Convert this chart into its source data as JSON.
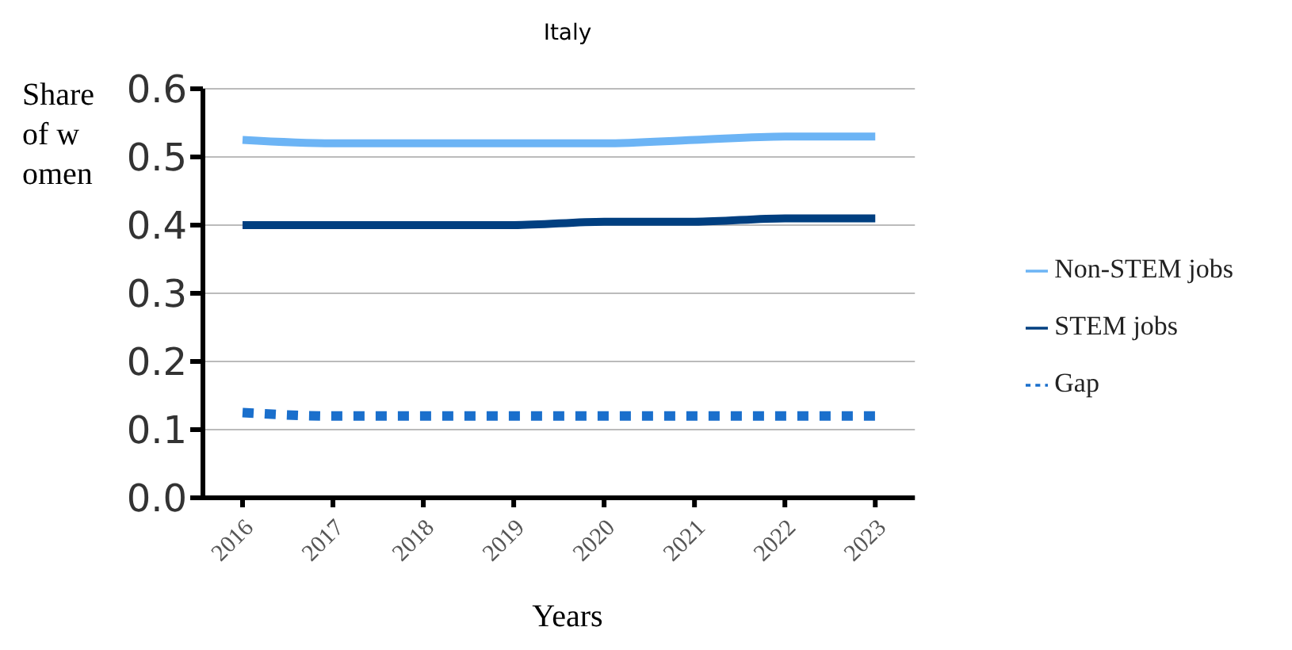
{
  "chart_data": {
    "type": "line",
    "title": "Italy",
    "xlabel": "Years",
    "ylabel": "Share of women",
    "categories": [
      "2016",
      "2017",
      "2018",
      "2019",
      "2020",
      "2021",
      "2022",
      "2023"
    ],
    "series": [
      {
        "name": "Non-STEM jobs",
        "color": "#6cb4f5",
        "values": [
          0.525,
          0.52,
          0.52,
          0.52,
          0.52,
          0.525,
          0.53,
          0.53
        ]
      },
      {
        "name": "STEM jobs",
        "color": "#003f80",
        "values": [
          0.4,
          0.4,
          0.4,
          0.4,
          0.405,
          0.405,
          0.41,
          0.41
        ]
      },
      {
        "name": "Gap",
        "color": "#1a6fcc",
        "line_style": "dotted",
        "values": [
          0.125,
          0.12,
          0.12,
          0.12,
          0.12,
          0.12,
          0.12,
          0.12
        ]
      }
    ],
    "ylim": [
      0,
      0.6
    ],
    "yticks": [
      {
        "value": 0,
        "label": "0.0"
      },
      0.1,
      0.2,
      0.3,
      0.4,
      0.5,
      0.6
    ],
    "grid": "y",
    "legend": "right",
    "marker": "none"
  }
}
